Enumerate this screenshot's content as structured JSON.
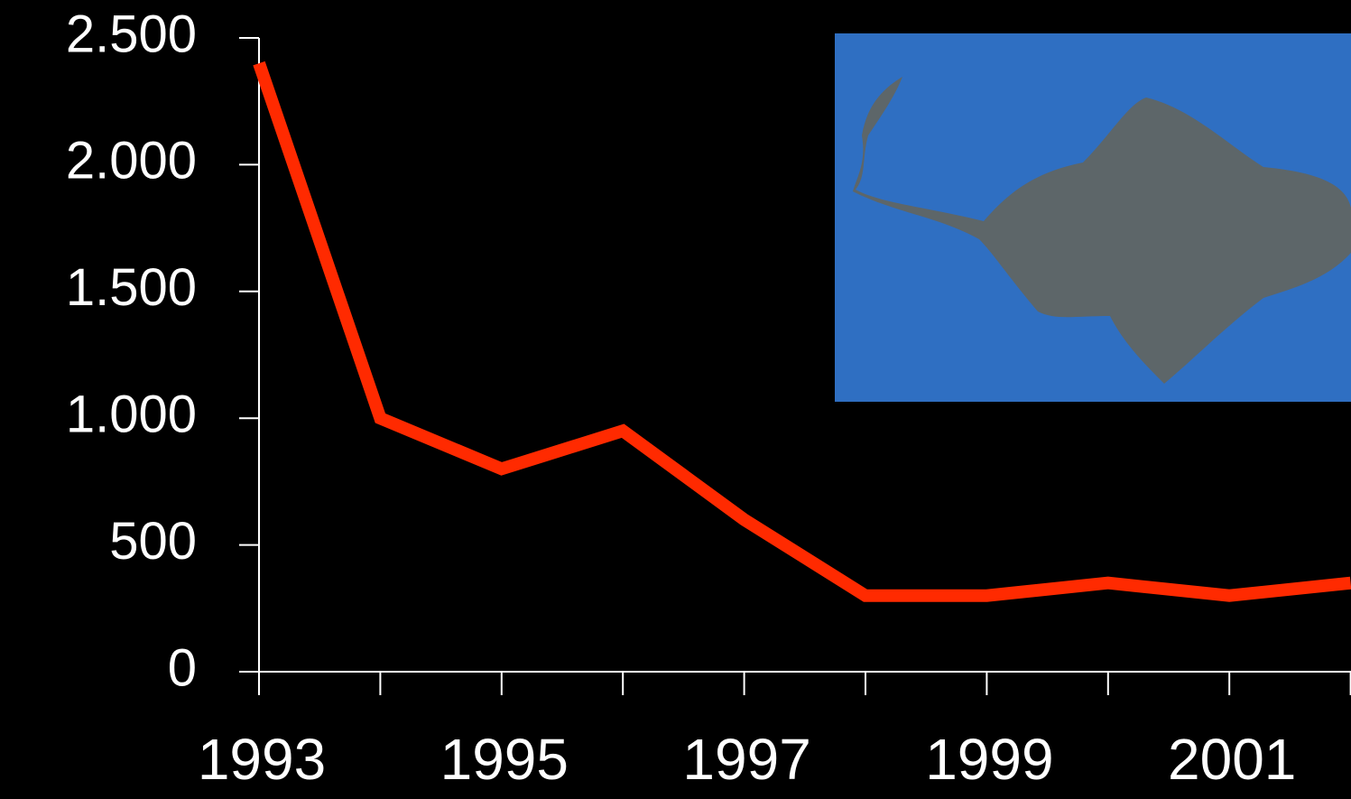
{
  "chart_data": {
    "type": "line",
    "categories": [
      "1993",
      null,
      "1995",
      null,
      "1997",
      null,
      "1999",
      null,
      "2001",
      null
    ],
    "series": [
      {
        "color": "#ff2a00",
        "values": [
          2400,
          1000,
          800,
          950,
          600,
          300,
          300,
          350,
          300,
          350
        ]
      }
    ],
    "ylim": [
      0,
      2500
    ],
    "yticks": [
      0,
      500,
      {
        "value": 1000,
        "label": "1.000"
      },
      {
        "value": 1500,
        "label": "1.500"
      },
      {
        "value": 2000,
        "label": "2.000"
      },
      {
        "value": 2500,
        "label": "2.500"
      }
    ],
    "grid": false
  }
}
